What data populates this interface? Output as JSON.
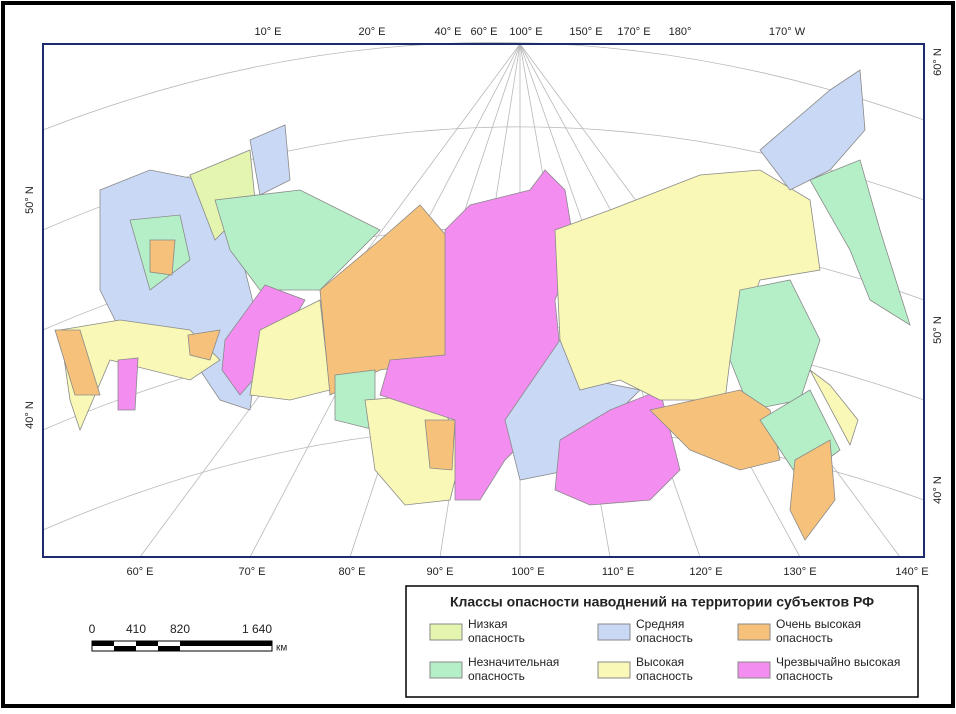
{
  "map": {
    "top_labels": [
      "10° E",
      "20° E",
      "40° E",
      "60° E",
      "100° E",
      "150° E",
      "170° E",
      "180°",
      "170° W"
    ],
    "bottom_labels": [
      "60° E",
      "70° E",
      "80° E",
      "90° E",
      "100° E",
      "110° E",
      "120° E",
      "130° E",
      "140° E"
    ],
    "left_labels": [
      "50° N",
      "40° N"
    ],
    "right_labels": [
      "60° N",
      "50° N",
      "40° N"
    ]
  },
  "scale_bar": {
    "labels": [
      "0",
      "410",
      "820",
      "1 640"
    ],
    "unit": "км"
  },
  "legend": {
    "title": "Классы опасности наводнений на территории субъектов РФ",
    "items": [
      {
        "label": "Низкая опасность",
        "color": "#e4f5b0"
      },
      {
        "label": "Незначительная опасность",
        "color": "#b4efc8"
      },
      {
        "label": "Средняя опасность",
        "color": "#c9d9f5"
      },
      {
        "label": "Высокая опасность",
        "color": "#f9f8b6"
      },
      {
        "label": "Очень высокая опасность",
        "color": "#f6c27b"
      },
      {
        "label": "Чрезвычайно высокая опасность",
        "color": "#f38df0"
      }
    ]
  }
}
